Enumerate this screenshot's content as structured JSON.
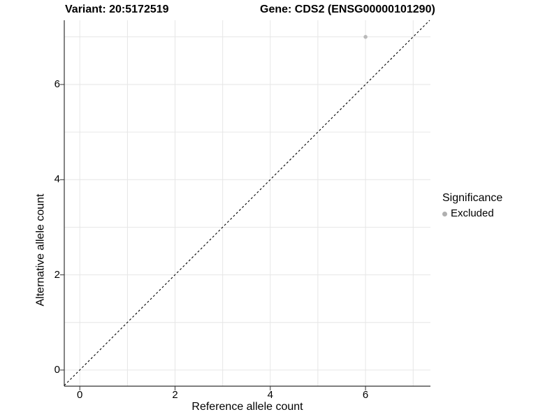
{
  "chart_data": {
    "type": "scatter",
    "title_left": "Variant: 20:5172519",
    "title_right": "Gene: CDS2 (ENSG00000101290)",
    "xlabel": "Reference allele count",
    "ylabel": "Alternative allele count",
    "x_ticks": [
      0,
      2,
      4,
      6
    ],
    "y_ticks": [
      0,
      2,
      4,
      6
    ],
    "grid_values": [
      0,
      1,
      2,
      3,
      4,
      5,
      6,
      7
    ],
    "xlim": [
      -0.37,
      7.37
    ],
    "ylim": [
      -0.37,
      7.37
    ],
    "grid": "on",
    "points": [
      {
        "x": 6,
        "y": 7,
        "significance": "Excluded"
      }
    ],
    "reference_line": {
      "type": "identity y = x",
      "style": "dashed",
      "color": "#000000"
    },
    "legend": {
      "title": "Significance",
      "position": "right",
      "entries": [
        {
          "label": "Excluded",
          "marker": "circle",
          "color": "#b0b0b0"
        }
      ]
    },
    "colors": {
      "point": "#b9b9b9",
      "grid": "#e6e6e6",
      "axis": "#333333",
      "background": "#ffffff"
    }
  }
}
